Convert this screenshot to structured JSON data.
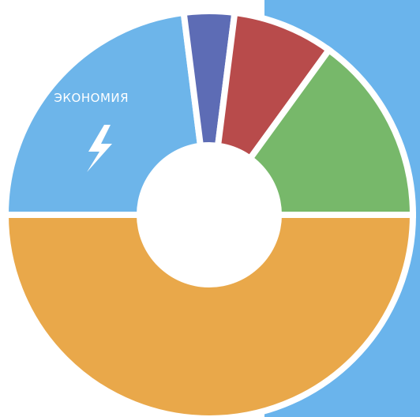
{
  "chart_data": {
    "type": "pie",
    "categories": [
      null,
      "ЭКОНОМИЯ",
      null,
      null,
      null
    ],
    "values": [
      50,
      23,
      4,
      8,
      15
    ],
    "colors": [
      "#e9a84a",
      "#6db5ea",
      "#5d6cb5",
      "#b84b4b",
      "#77b86a"
    ]
  }
}
